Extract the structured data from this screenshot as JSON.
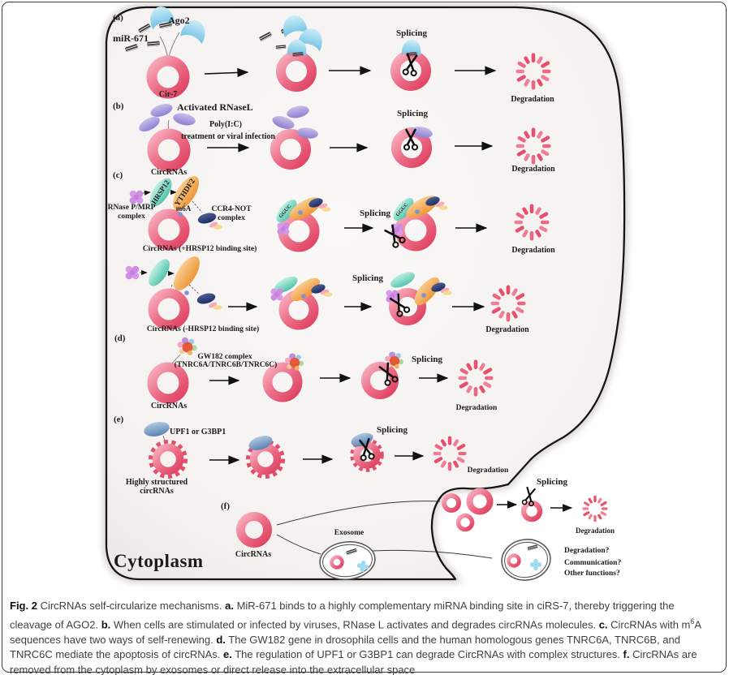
{
  "labels": {
    "cytoplasm": "Cytoplasm",
    "a": {
      "panel": "(a)",
      "mir671": "miR-671",
      "ago2": "Ago2",
      "cir7": "Cir-7",
      "splicing": "Splicing",
      "degradation": "Degradation"
    },
    "b": {
      "panel": "(b)",
      "activated": "Activated RNaseL",
      "polyic": "Poly(I:C)",
      "treatment": "treatment or viral infection",
      "circrnas": "CircRNAs",
      "splicing": "Splicing",
      "degradation": "Degradation"
    },
    "c": {
      "panel": "(c)",
      "rnasep1": "RNase P/MRP",
      "rnasep2": "complex",
      "hrsp12": "HRSP12",
      "ythdf2": "YTHDF2",
      "m6a": "m6A",
      "ccr41": "CCR4-NOT",
      "ccr42": "complex",
      "gguc": "GGUC",
      "circ_plus": "CircRNAs (+HRSP12 binding site)",
      "circ_minus": "CircRNAs (-HRSP12 binding site)",
      "splicing1": "Splicing",
      "splicing2": "Splicing",
      "degradation1": "Degradation",
      "degradation2": "Degradation"
    },
    "d": {
      "panel": "(d)",
      "gw1821": "GW182 complex",
      "gw1822": "(TNRC6A/TNRC6B/TNRC6C)",
      "circrnas": "CircRNAs",
      "splicing": "Splicing",
      "degradation": "Degradation"
    },
    "e": {
      "panel": "(e)",
      "upf1": "UPF1 or G3BP1",
      "highly1": "Highly structured",
      "highly2": "circRNAs",
      "splicing": "Splicing",
      "degradation": "Degradation"
    },
    "f": {
      "panel": "(f)",
      "circrnas": "CircRNAs",
      "exosome": "Exosome",
      "splicing": "Splicing",
      "degradation": "Degradation",
      "q1": "Degradation?",
      "q2": "Communication?",
      "q3": "Other functions?"
    }
  },
  "caption": {
    "segments": [
      {
        "t": "Fig. 2",
        "b": true
      },
      {
        "t": " CircRNAs self-circularize mechanisms. "
      },
      {
        "t": "a.",
        "b": true
      },
      {
        "t": " MiR-671 binds to a highly complementary miRNA binding site in ciRS-7, thereby triggering the cleavage of AGO2. "
      },
      {
        "t": "b.",
        "b": true
      },
      {
        "t": " When cells are stimulated or infected by viruses, RNase L activates and degrades circRNAs molecules. "
      },
      {
        "t": "c.",
        "b": true
      },
      {
        "t": " CircRNAs with m"
      },
      {
        "t": "6",
        "sup": true
      },
      {
        "t": "A sequences have two ways of self-renewing. "
      },
      {
        "t": "d.",
        "b": true
      },
      {
        "t": " The GW182 gene in drosophila cells and the human homologous genes TNRC6A, TNRC6B, and TNRC6C mediate the apoptosis of circRNAs. "
      },
      {
        "t": "e.",
        "b": true
      },
      {
        "t": " The regulation of UPF1 or G3BP1 can degrade CircRNAs with complex structures. "
      },
      {
        "t": "f.",
        "b": true
      },
      {
        "t": " CircRNAs are removed from the cytoplasm by exosomes or direct release into the extracellular space"
      }
    ]
  },
  "colors": {
    "ring_pink": "#e8506e",
    "membrane": "#161616",
    "cell_fill": "#f6f4f2",
    "ago2_blue": "#7ec8e8",
    "rnasel_purple": "#9b8cd6",
    "hrsp12_teal": "#5ecab4",
    "ythdf2_orange": "#f09a3e",
    "ccr4_navy": "#2e4180",
    "rnasep_purple": "#d79ae6",
    "upf1_blue": "#5e86b5",
    "exosome_outline": "#5a5a5a",
    "puzzle_cyan": "#9fdcef"
  }
}
